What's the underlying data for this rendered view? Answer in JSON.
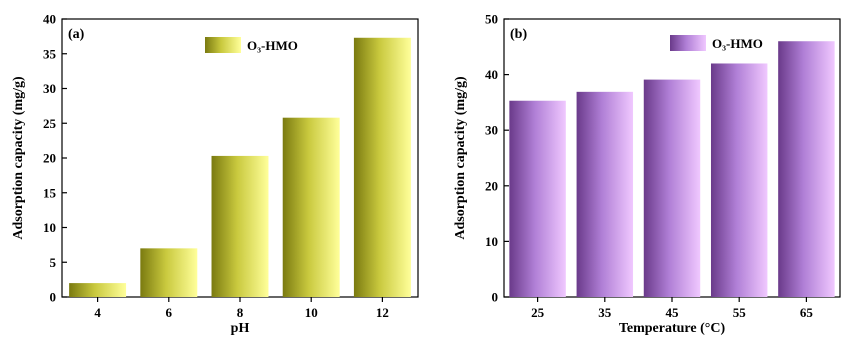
{
  "chart_data": [
    {
      "type": "bar",
      "panel_label": "(a)",
      "categories": [
        "4",
        "6",
        "8",
        "10",
        "12"
      ],
      "series": [
        {
          "name": "O₃-HMO",
          "values": [
            2.0,
            7.0,
            20.3,
            25.8,
            37.3
          ]
        }
      ],
      "xlabel": "pH",
      "ylabel": "Adsorption capacity (mg/g)",
      "ylim": [
        0,
        40
      ],
      "yticks": [
        "0",
        "5",
        "10",
        "15",
        "20",
        "25",
        "30",
        "35",
        "40"
      ],
      "grid": false,
      "legend_position": "top-right",
      "colors": {
        "dark": "#7a7a10",
        "mid": "#c9c93e",
        "light": "#ffff9a"
      }
    },
    {
      "type": "bar",
      "panel_label": "(b)",
      "categories": [
        "25",
        "35",
        "45",
        "55",
        "65"
      ],
      "series": [
        {
          "name": "O₃-HMO",
          "values": [
            35.3,
            36.9,
            39.1,
            42.0,
            46.0
          ]
        }
      ],
      "xlabel": "Temperature (°C)",
      "ylabel": "Adsorption capacity (mg/g)",
      "ylim": [
        0,
        50
      ],
      "yticks": [
        "0",
        "10",
        "20",
        "30",
        "40",
        "50"
      ],
      "grid": false,
      "legend_position": "top-right",
      "colors": {
        "dark": "#6a3a8a",
        "mid": "#b07fd6",
        "light": "#f0c8ff"
      }
    }
  ]
}
